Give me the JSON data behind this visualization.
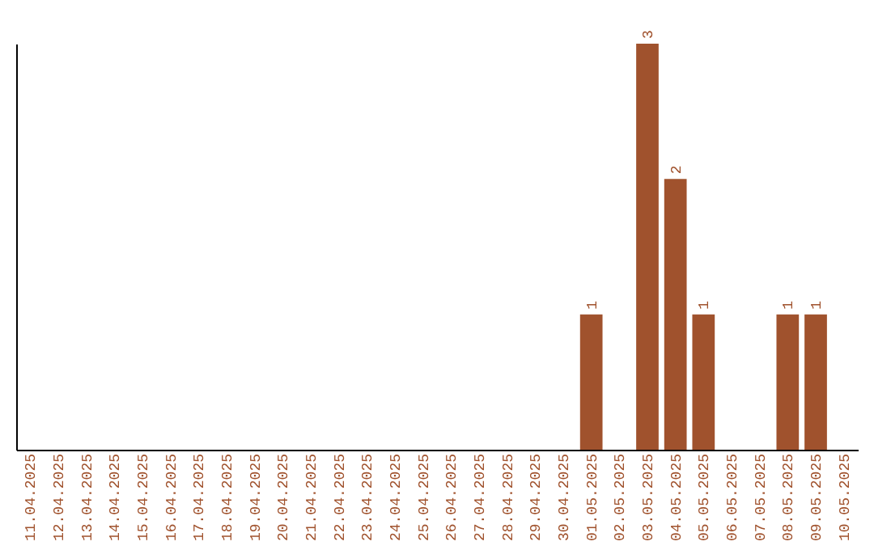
{
  "chart_data": {
    "type": "bar",
    "categories": [
      "11.04.2025",
      "12.04.2025",
      "13.04.2025",
      "14.04.2025",
      "15.04.2025",
      "16.04.2025",
      "17.04.2025",
      "18.04.2025",
      "19.04.2025",
      "20.04.2025",
      "21.04.2025",
      "22.04.2025",
      "23.04.2025",
      "24.04.2025",
      "25.04.2025",
      "26.04.2025",
      "27.04.2025",
      "28.04.2025",
      "29.04.2025",
      "30.04.2025",
      "01.05.2025",
      "02.05.2025",
      "03.05.2025",
      "04.05.2025",
      "05.05.2025",
      "06.05.2025",
      "07.05.2025",
      "08.05.2025",
      "09.05.2025",
      "10.05.2025"
    ],
    "values": [
      null,
      null,
      null,
      null,
      null,
      null,
      null,
      null,
      null,
      null,
      null,
      null,
      null,
      null,
      null,
      null,
      null,
      null,
      null,
      null,
      1,
      null,
      3,
      2,
      1,
      null,
      null,
      1,
      1,
      null
    ],
    "data_labels": true,
    "color": "#a0522d",
    "grid": false
  }
}
